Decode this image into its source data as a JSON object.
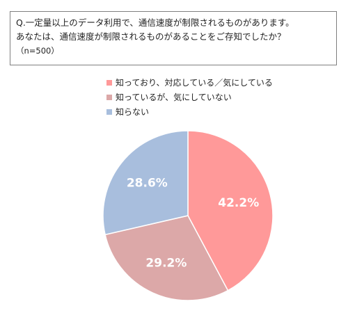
{
  "question": {
    "line1": "Q.一定量以上のデータ利用で、通信速度が制限されるものがあります。",
    "line2": "あなたは、通信速度が制限されるものがあることをご存知でしたか？",
    "sample": "（n=500）"
  },
  "chart_data": {
    "type": "pie",
    "slices": [
      {
        "label": "知っており、対応している／気にしている",
        "value": 42.2,
        "display": "42.2%",
        "color": "#ff9999"
      },
      {
        "label": "知っているが、気にしていない",
        "value": 29.2,
        "display": "29.2%",
        "color": "#dca8a8"
      },
      {
        "label": "知らない",
        "value": 28.6,
        "display": "28.6%",
        "color": "#a8bedd"
      }
    ],
    "legend_position": "top"
  }
}
